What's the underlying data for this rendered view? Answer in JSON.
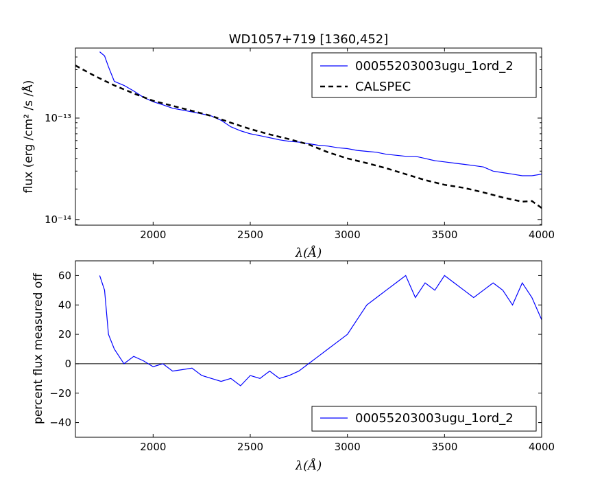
{
  "chart_data": [
    {
      "type": "line",
      "title": "WD1057+719 [1360,452]",
      "xlabel": "λ(Å)",
      "ylabel": "flux (erg /cm² /s /Å)",
      "xlim": [
        1600,
        4000
      ],
      "ylim": [
        8.8e-15,
        4.9e-13
      ],
      "yscale": "log",
      "grid": false,
      "legend_position": "top-right",
      "x_ticks": [
        2000,
        2500,
        3000,
        3500,
        4000
      ],
      "x_tick_labels": [
        "2000",
        "2500",
        "3000",
        "3500",
        "4000"
      ],
      "y_ticks": [
        1e-14,
        1e-13
      ],
      "y_tick_labels": [
        "10⁻¹⁴",
        "10⁻¹³"
      ],
      "series": [
        {
          "name": "00055203003ugu_1ord_2",
          "style": "solid",
          "color": "#0000ff",
          "x": [
            1725,
            1750,
            1770,
            1800,
            1850,
            1900,
            1950,
            2000,
            2050,
            2100,
            2150,
            2200,
            2250,
            2300,
            2350,
            2400,
            2450,
            2500,
            2550,
            2600,
            2650,
            2700,
            2750,
            2800,
            2850,
            2900,
            2950,
            3000,
            3050,
            3100,
            3150,
            3200,
            3250,
            3300,
            3350,
            3400,
            3450,
            3500,
            3550,
            3600,
            3650,
            3700,
            3750,
            3800,
            3850,
            3900,
            3950,
            4000
          ],
          "y": [
            4.5e-13,
            4.1e-13,
            3.2e-13,
            2.3e-13,
            2.1e-13,
            1.85e-13,
            1.6e-13,
            1.45e-13,
            1.35e-13,
            1.25e-13,
            1.2e-13,
            1.15e-13,
            1.1e-13,
            1.05e-13,
            9.5e-14,
            8.2e-14,
            7.5e-14,
            7e-14,
            6.7e-14,
            6.4e-14,
            6.1e-14,
            5.9e-14,
            5.8e-14,
            5.6e-14,
            5.4e-14,
            5.3e-14,
            5.1e-14,
            5e-14,
            4.8e-14,
            4.7e-14,
            4.6e-14,
            4.4e-14,
            4.3e-14,
            4.2e-14,
            4.2e-14,
            4e-14,
            3.8e-14,
            3.7e-14,
            3.6e-14,
            3.5e-14,
            3.4e-14,
            3.3e-14,
            3e-14,
            2.9e-14,
            2.8e-14,
            2.7e-14,
            2.7e-14,
            2.8e-14
          ]
        },
        {
          "name": "CALSPEC",
          "style": "dashed",
          "color": "#000000",
          "x": [
            1600,
            1700,
            1800,
            1900,
            2000,
            2100,
            2200,
            2300,
            2400,
            2500,
            2600,
            2700,
            2800,
            2900,
            3000,
            3100,
            3200,
            3300,
            3400,
            3500,
            3600,
            3700,
            3800,
            3900,
            3950,
            4000
          ],
          "y": [
            3.3e-13,
            2.6e-13,
            2.1e-13,
            1.75e-13,
            1.48e-13,
            1.32e-13,
            1.18e-13,
            1.05e-13,
            9e-14,
            7.8e-14,
            6.9e-14,
            6.2e-14,
            5.5e-14,
            4.6e-14,
            4e-14,
            3.6e-14,
            3.2e-14,
            2.8e-14,
            2.45e-14,
            2.2e-14,
            2.05e-14,
            1.85e-14,
            1.65e-14,
            1.5e-14,
            1.52e-14,
            1.3e-14
          ]
        }
      ]
    },
    {
      "type": "line",
      "title": "",
      "xlabel": "λ(Å)",
      "ylabel": "percent flux measured off",
      "xlim": [
        1600,
        4000
      ],
      "ylim": [
        -50,
        70
      ],
      "yscale": "linear",
      "grid": false,
      "legend_position": "bottom-right",
      "x_ticks": [
        2000,
        2500,
        3000,
        3500,
        4000
      ],
      "x_tick_labels": [
        "2000",
        "2500",
        "3000",
        "3500",
        "4000"
      ],
      "y_ticks": [
        -40,
        -20,
        0,
        20,
        40,
        60
      ],
      "y_tick_labels": [
        "−40",
        "−20",
        "0",
        "20",
        "40",
        "60"
      ],
      "reference_line": 0,
      "series": [
        {
          "name": "00055203003ugu_1ord_2",
          "style": "solid",
          "color": "#0000ff",
          "x": [
            1725,
            1750,
            1770,
            1800,
            1850,
            1900,
            1950,
            2000,
            2050,
            2100,
            2150,
            2200,
            2250,
            2300,
            2350,
            2400,
            2450,
            2500,
            2550,
            2600,
            2650,
            2700,
            2750,
            2800,
            2850,
            2900,
            2950,
            3000,
            3050,
            3100,
            3150,
            3200,
            3250,
            3300,
            3350,
            3400,
            3450,
            3500,
            3550,
            3600,
            3650,
            3700,
            3750,
            3800,
            3850,
            3900,
            3950,
            4000
          ],
          "y": [
            60,
            50,
            20,
            10,
            0,
            5,
            2,
            -2,
            0,
            -5,
            -4,
            -3,
            -8,
            -10,
            -12,
            -10,
            -15,
            -8,
            -10,
            -5,
            -10,
            -8,
            -5,
            0,
            5,
            10,
            15,
            20,
            30,
            40,
            45,
            50,
            55,
            60,
            45,
            55,
            50,
            60,
            55,
            50,
            45,
            50,
            55,
            50,
            40,
            55,
            45,
            30
          ]
        }
      ]
    }
  ]
}
